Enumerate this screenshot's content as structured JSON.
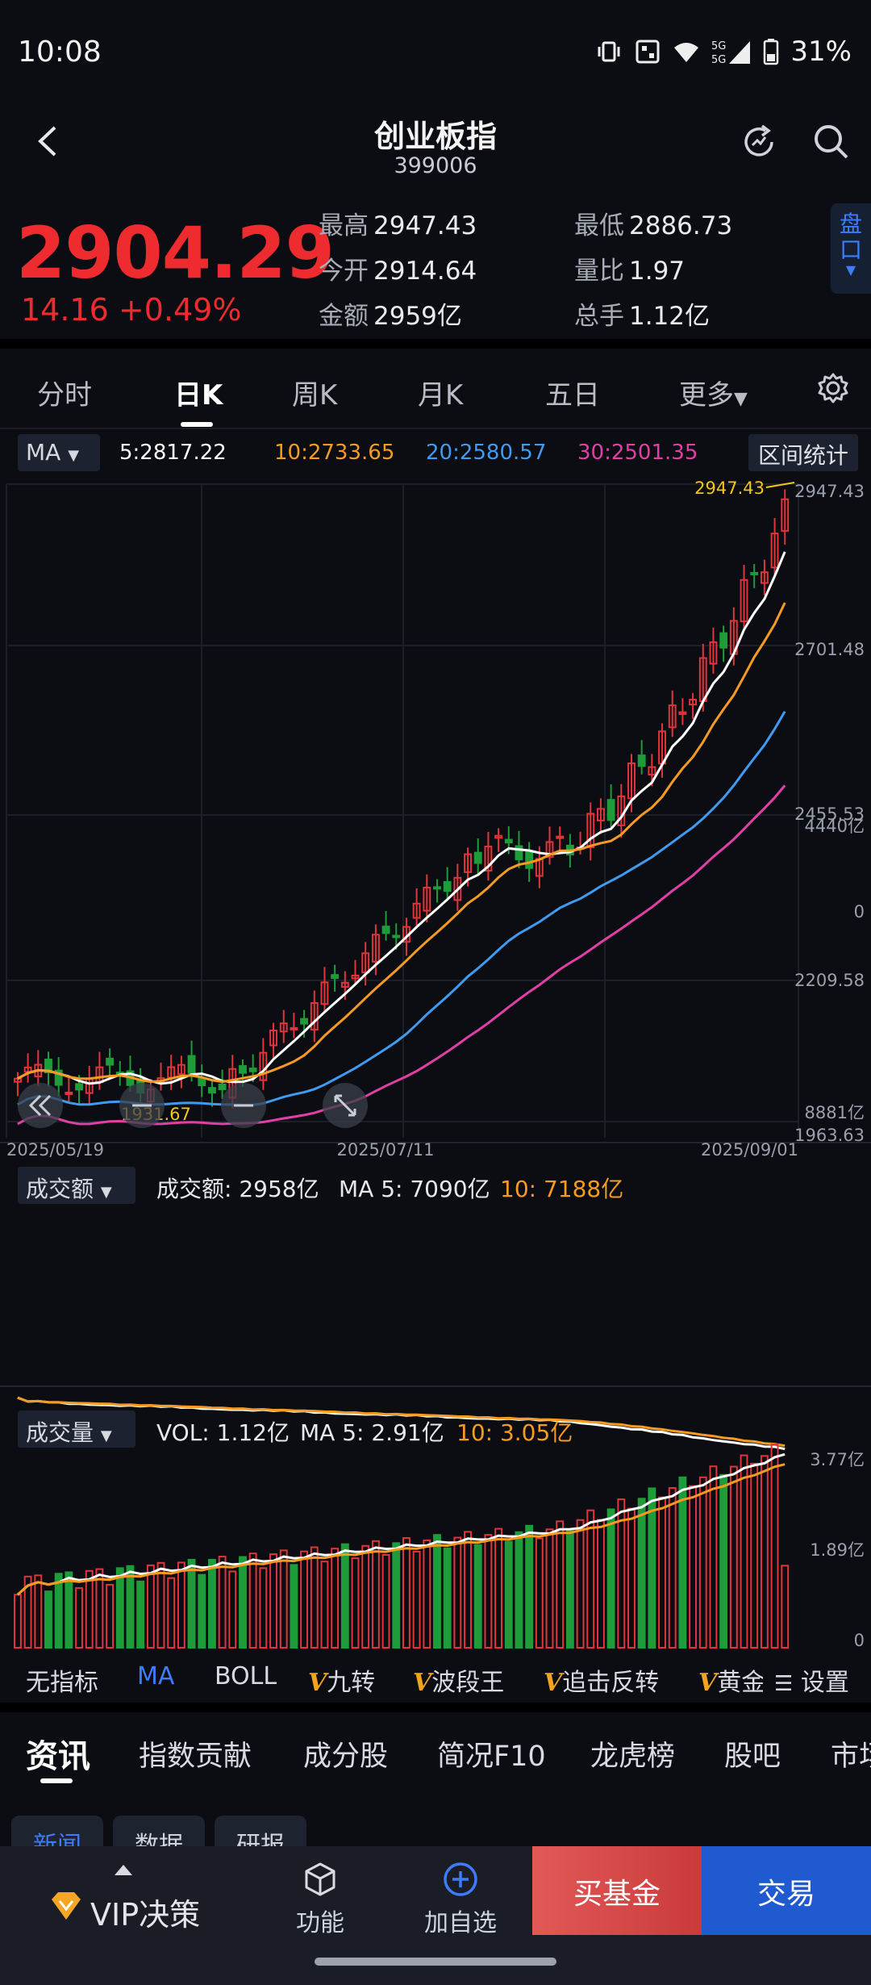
{
  "status_bar": {
    "time": "10:08",
    "battery": "31%",
    "icons": [
      "vibrate-icon",
      "nfc-icon",
      "wifi-icon",
      "5g-signal-icon",
      "battery-icon"
    ]
  },
  "header": {
    "title": "创业板指",
    "code": "399006"
  },
  "quote": {
    "price": "2904.29",
    "change": "14.16 +0.49%",
    "stats": [
      {
        "label": "最高",
        "value": "2947.43"
      },
      {
        "label": "最低",
        "value": "2886.73"
      },
      {
        "label": "今开",
        "value": "2914.64"
      },
      {
        "label": "量比",
        "value": "1.97"
      },
      {
        "label": "金额",
        "value": "2959亿"
      },
      {
        "label": "总手",
        "value": "1.12亿"
      }
    ],
    "pankou_label": "盘口"
  },
  "period_tabs": [
    "分时",
    "日K",
    "周K",
    "月K",
    "五日",
    "更多"
  ],
  "active_period": "日K",
  "ma_legend": {
    "selector": "MA",
    "ma5": "5:2817.22",
    "ma10": "10:2733.65",
    "ma20": "20:2580.57",
    "ma30": "30:2501.35",
    "range_button": "区间统计"
  },
  "colors": {
    "up": "#e0353b",
    "down": "#1f9c3a",
    "ma5": "#ffffff",
    "ma10": "#f59a23",
    "ma20": "#3f9bf2",
    "ma30": "#e040a6",
    "accent": "#3d7cff"
  },
  "chart_data": [
    {
      "type": "candlestick",
      "y_axis_labels": [
        "2947.43",
        "2701.48",
        "2455.53",
        "2209.58",
        "1963.63"
      ],
      "ylim": [
        1963.63,
        2947.43
      ],
      "x_labels": [
        "2025/05/19",
        "2025/07/11",
        "2025/09/01"
      ],
      "annotations": {
        "high": "2947.43",
        "low": "1931.67"
      },
      "series": [
        {
          "name": "MA5",
          "value": "2817.22"
        },
        {
          "name": "MA10",
          "value": "2733.65"
        },
        {
          "name": "MA20",
          "value": "2580.57"
        },
        {
          "name": "MA30",
          "value": "2501.35"
        }
      ]
    },
    {
      "type": "bar",
      "selector": "成交额",
      "legend": {
        "main": "成交额: 2958亿",
        "ma5": "MA 5: 7090亿",
        "ma10": "10: 7188亿"
      },
      "y_axis_labels": [
        "8881亿",
        "4440亿",
        "0"
      ]
    },
    {
      "type": "bar",
      "selector": "成交量",
      "legend": {
        "main": "VOL: 1.12亿",
        "ma5": "MA 5: 2.91亿",
        "ma10": "10: 3.05亿"
      },
      "y_axis_labels": [
        "3.77亿",
        "1.89亿",
        "0"
      ]
    }
  ],
  "indicators": [
    "无指标",
    "MA",
    "BOLL",
    "九转",
    "波段王",
    "追击反转",
    "黄金",
    "设置"
  ],
  "indicator_vip_prefix": "V",
  "news_tabs": [
    "资讯",
    "指数贡献",
    "成分股",
    "简况F10",
    "龙虎榜",
    "股吧",
    "市场"
  ],
  "chips": [
    "新闻",
    "数据",
    "研报"
  ],
  "bottom_bar": {
    "vip": "VIP决策",
    "function": "功能",
    "favorite": "加自选",
    "buy_fund": "买基金",
    "trade": "交易"
  }
}
